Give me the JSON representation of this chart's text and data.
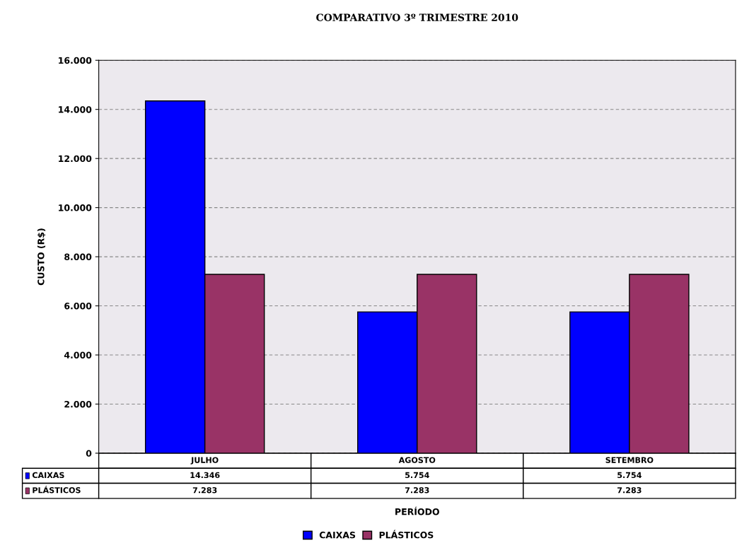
{
  "chart_data": {
    "type": "bar",
    "title": "COMPARATIVO 3º TRIMESTRE 2010",
    "xlabel": "PERÍODO",
    "ylabel": "CUSTO (R$)",
    "categories": [
      "JULHO",
      "AGOSTO",
      "SETEMBRO"
    ],
    "series": [
      {
        "name": "CAIXAS",
        "color": "#0000ff",
        "values": [
          14346,
          5754,
          5754
        ],
        "value_labels": [
          "14.346",
          "5.754",
          "5.754"
        ]
      },
      {
        "name": "PLÁSTICOS",
        "color": "#993366",
        "values": [
          7283,
          7283,
          7283
        ],
        "value_labels": [
          "7.283",
          "7.283",
          "7.283"
        ]
      }
    ],
    "ylim": [
      0,
      16000
    ],
    "yticks": [
      {
        "value": 0,
        "label": "0"
      },
      {
        "value": 2000,
        "label": "2.000"
      },
      {
        "value": 4000,
        "label": "4.000"
      },
      {
        "value": 6000,
        "label": "6.000"
      },
      {
        "value": 8000,
        "label": "8.000"
      },
      {
        "value": 10000,
        "label": "10.000"
      },
      {
        "value": 12000,
        "label": "12.000"
      },
      {
        "value": 14000,
        "label": "14.000"
      },
      {
        "value": 16000,
        "label": "16.000"
      }
    ],
    "grid": "y",
    "legend": "bottom"
  }
}
